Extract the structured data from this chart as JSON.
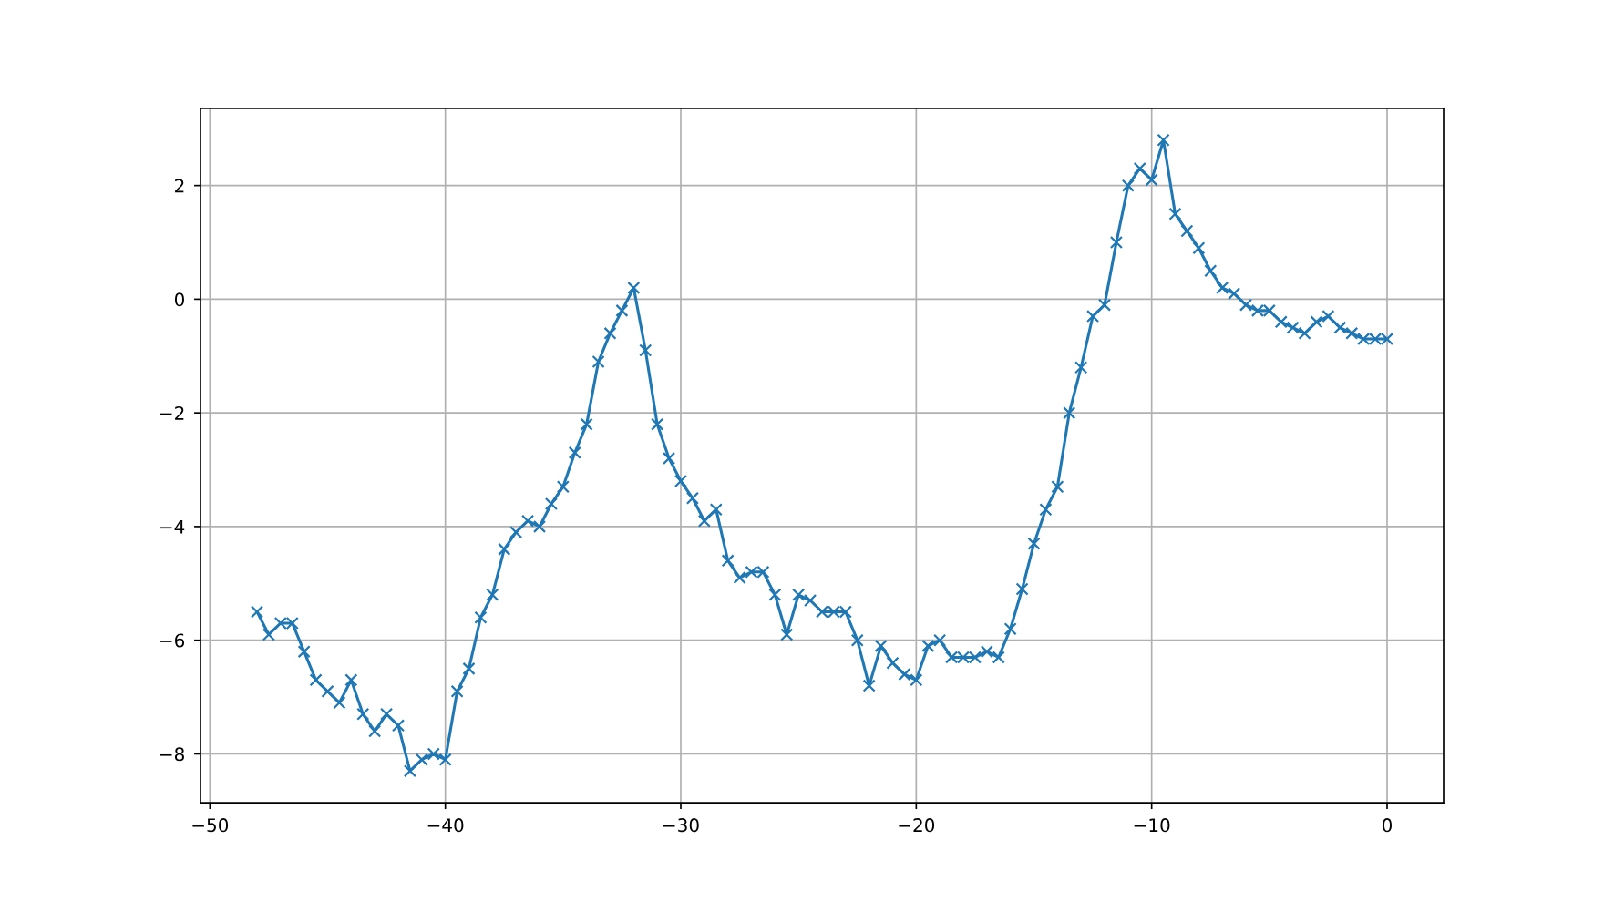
{
  "chart_data": {
    "type": "line",
    "x": [
      -48,
      -47.5,
      -47,
      -46.5,
      -46,
      -45.5,
      -45,
      -44.5,
      -44,
      -43.5,
      -43,
      -42.5,
      -42,
      -41.5,
      -41,
      -40.5,
      -40,
      -39.5,
      -39,
      -38.5,
      -38,
      -37.5,
      -37,
      -36.5,
      -36,
      -35.5,
      -35,
      -34.5,
      -34,
      -33.5,
      -33,
      -32.5,
      -32,
      -31.5,
      -31,
      -30.5,
      -30,
      -29.5,
      -29,
      -28.5,
      -28,
      -27.5,
      -27,
      -26.5,
      -26,
      -25.5,
      -25,
      -24.5,
      -24,
      -23.5,
      -23,
      -22.5,
      -22,
      -21.5,
      -21,
      -20.5,
      -20,
      -19.5,
      -19,
      -18.5,
      -18,
      -17.5,
      -17,
      -16.5,
      -16,
      -15.5,
      -15,
      -14.5,
      -14,
      -13.5,
      -13,
      -12.5,
      -12,
      -11.5,
      -11,
      -10.5,
      -10,
      -9.5,
      -9,
      -8.5,
      -8,
      -7.5,
      -7,
      -6.5,
      -6,
      -5.5,
      -5,
      -4.5,
      -4,
      -3.5,
      -3,
      -2.5,
      -2,
      -1.5,
      -1,
      -0.5,
      0
    ],
    "series": [
      {
        "color": "#1f77b4",
        "values": [
          -5.5,
          -5.9,
          -5.7,
          -5.7,
          -6.2,
          -6.7,
          -6.9,
          -7.1,
          -6.7,
          -7.3,
          -7.6,
          -7.3,
          -7.5,
          -8.3,
          -8.1,
          -8.0,
          -8.1,
          -6.9,
          -6.5,
          -5.6,
          -5.2,
          -4.4,
          -4.1,
          -3.9,
          -4.0,
          -3.6,
          -3.3,
          -2.7,
          -2.2,
          -1.1,
          -0.6,
          -0.2,
          0.2,
          -0.9,
          -2.2,
          -2.8,
          -3.2,
          -3.5,
          -3.9,
          -3.7,
          -4.6,
          -4.9,
          -4.8,
          -4.8,
          -5.2,
          -5.9,
          -5.2,
          -5.3,
          -5.5,
          -5.5,
          -5.5,
          -6.0,
          -6.8,
          -6.1,
          -6.4,
          -6.6,
          -6.7,
          -6.1,
          -6.0,
          -6.3,
          -6.3,
          -6.3,
          -6.2,
          -6.3,
          -5.8,
          -5.1,
          -4.3,
          -3.7,
          -3.3,
          -2.0,
          -1.2,
          -0.3,
          -0.1,
          1.0,
          2.0,
          2.3,
          2.1,
          2.8,
          1.5,
          1.2,
          0.9,
          0.5,
          0.2,
          0.1,
          -0.1,
          -0.2,
          -0.2,
          -0.4,
          -0.5,
          -0.6,
          -0.4,
          -0.3,
          -0.5,
          -0.6,
          -0.7,
          -0.7,
          -0.7
        ]
      }
    ],
    "xlim": [
      -50.4,
      2.4
    ],
    "xticks": [
      {
        "value": -50,
        "label": "−50"
      },
      {
        "value": -40,
        "label": "−40"
      },
      {
        "value": -30,
        "label": "−30"
      },
      {
        "value": -20,
        "label": "−20"
      },
      {
        "value": -10,
        "label": "−10"
      },
      0
    ],
    "ylim": [
      -8.86,
      3.36
    ],
    "yticks": [
      {
        "value": -8,
        "label": "−8"
      },
      {
        "value": -6,
        "label": "−6"
      },
      {
        "value": -4,
        "label": "−4"
      },
      {
        "value": -2,
        "label": "−2"
      },
      0,
      2
    ],
    "grid": true,
    "marker": "cross",
    "line_style": "solid"
  }
}
